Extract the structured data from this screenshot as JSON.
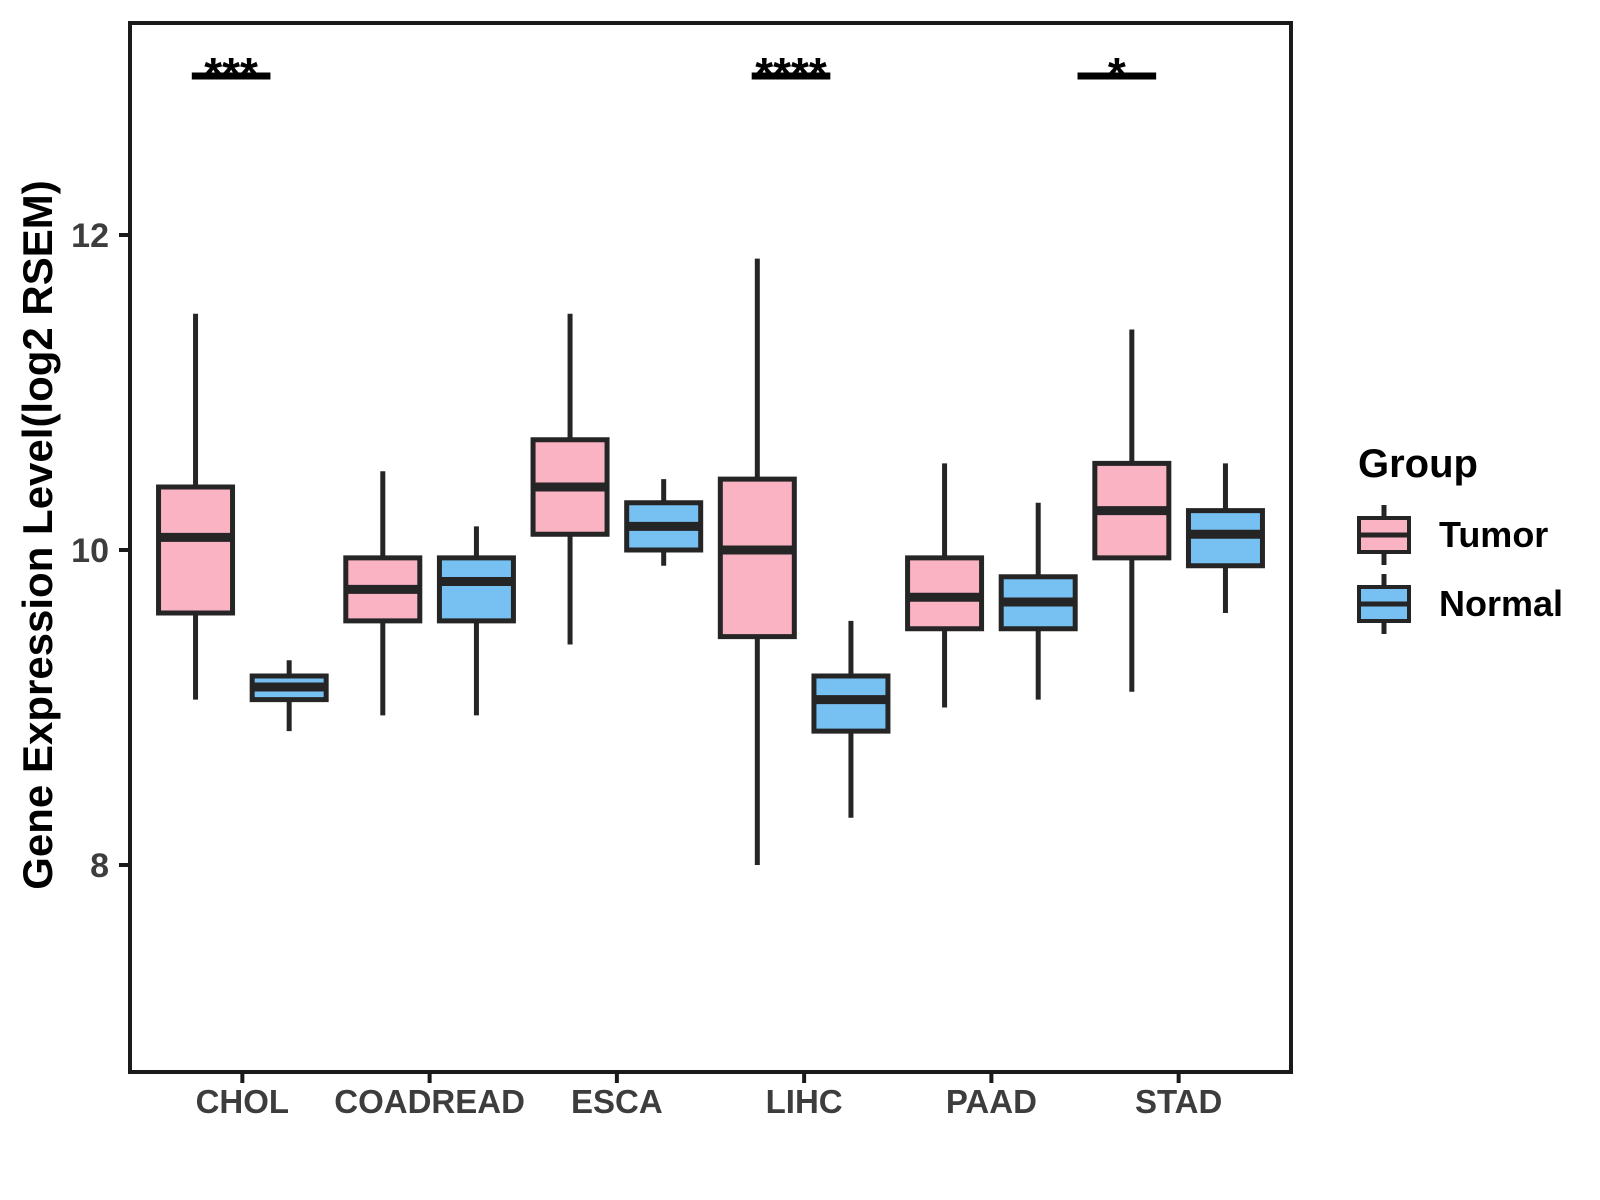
{
  "chart_data": {
    "type": "box",
    "title": "",
    "xlabel": "",
    "ylabel": "Gene Expression Level(log2 RSEM)",
    "categories": [
      "CHOL",
      "COADREAD",
      "ESCA",
      "LIHC",
      "PAAD",
      "STAD"
    ],
    "y_axis": {
      "ticks": [
        8,
        10,
        12
      ],
      "range_shown": [
        6.7,
        13.35
      ],
      "grid": "off"
    },
    "series": [
      {
        "name": "Tumor",
        "fill": "#FAB3C3",
        "boxes": [
          {
            "category": "CHOL",
            "min": 9.05,
            "q1": 9.6,
            "median": 10.08,
            "q3": 10.4,
            "max": 11.5
          },
          {
            "category": "COADREAD",
            "min": 8.95,
            "q1": 9.55,
            "median": 9.75,
            "q3": 9.95,
            "max": 10.5
          },
          {
            "category": "ESCA",
            "min": 9.4,
            "q1": 10.1,
            "median": 10.4,
            "q3": 10.7,
            "max": 11.5
          },
          {
            "category": "LIHC",
            "min": 8.0,
            "q1": 9.45,
            "median": 10.0,
            "q3": 10.45,
            "max": 11.85
          },
          {
            "category": "PAAD",
            "min": 9.0,
            "q1": 9.5,
            "median": 9.7,
            "q3": 9.95,
            "max": 10.55
          },
          {
            "category": "STAD",
            "min": 9.1,
            "q1": 9.95,
            "median": 10.25,
            "q3": 10.55,
            "max": 11.4
          }
        ]
      },
      {
        "name": "Normal",
        "fill": "#76C0F2",
        "boxes": [
          {
            "category": "CHOL",
            "min": 8.85,
            "q1": 9.05,
            "median": 9.13,
            "q3": 9.2,
            "max": 9.3
          },
          {
            "category": "COADREAD",
            "min": 8.95,
            "q1": 9.55,
            "median": 9.8,
            "q3": 9.95,
            "max": 10.15
          },
          {
            "category": "ESCA",
            "min": 9.9,
            "q1": 10.0,
            "median": 10.15,
            "q3": 10.3,
            "max": 10.45
          },
          {
            "category": "LIHC",
            "min": 8.3,
            "q1": 8.85,
            "median": 9.05,
            "q3": 9.2,
            "max": 9.55
          },
          {
            "category": "PAAD",
            "min": 9.05,
            "q1": 9.5,
            "median": 9.67,
            "q3": 9.83,
            "max": 10.3
          },
          {
            "category": "STAD",
            "min": 9.6,
            "q1": 9.9,
            "median": 10.1,
            "q3": 10.25,
            "max": 10.55
          }
        ]
      }
    ],
    "annotations": [
      {
        "category": "CHOL",
        "label": "***",
        "x_start": 0.73,
        "x_end": 1.15
      },
      {
        "category": "LIHC",
        "label": "****",
        "x_start": 3.72,
        "x_end": 4.14
      },
      {
        "category": "STAD",
        "label": "*",
        "x_start": 5.46,
        "x_end": 5.88
      }
    ],
    "legend": {
      "title": "Group",
      "position": "right",
      "entries": [
        {
          "label": "Tumor",
          "fill": "#FAB3C3"
        },
        {
          "label": "Normal",
          "fill": "#76C0F2"
        }
      ]
    },
    "style": {
      "box_border": "#252525",
      "axis_color": "#1a1a1a",
      "tick_label_color": "#3d3d3d",
      "axis_title_color": "#000000",
      "annotation_color": "#000000",
      "background": "#ffffff"
    }
  }
}
